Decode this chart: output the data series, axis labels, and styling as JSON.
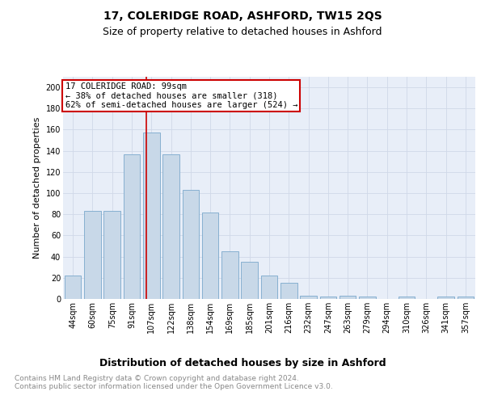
{
  "title1": "17, COLERIDGE ROAD, ASHFORD, TW15 2QS",
  "title2": "Size of property relative to detached houses in Ashford",
  "xlabel": "Distribution of detached houses by size in Ashford",
  "ylabel": "Number of detached properties",
  "categories": [
    "44sqm",
    "60sqm",
    "75sqm",
    "91sqm",
    "107sqm",
    "122sqm",
    "138sqm",
    "154sqm",
    "169sqm",
    "185sqm",
    "201sqm",
    "216sqm",
    "232sqm",
    "247sqm",
    "263sqm",
    "279sqm",
    "294sqm",
    "310sqm",
    "326sqm",
    "341sqm",
    "357sqm"
  ],
  "values": [
    22,
    83,
    83,
    137,
    157,
    137,
    103,
    82,
    45,
    35,
    22,
    15,
    3,
    2,
    3,
    2,
    0,
    2,
    0,
    2,
    2
  ],
  "bar_color": "#c8d8e8",
  "bar_edge_color": "#7aa8cc",
  "grid_color": "#d0d8e8",
  "background_color": "#e8eef8",
  "red_line_color": "#cc0000",
  "annotation_box_text": "17 COLERIDGE ROAD: 99sqm\n← 38% of detached houses are smaller (318)\n62% of semi-detached houses are larger (524) →",
  "annotation_box_color": "#cc0000",
  "footer_text": "Contains HM Land Registry data © Crown copyright and database right 2024.\nContains public sector information licensed under the Open Government Licence v3.0.",
  "ylim": [
    0,
    210
  ],
  "yticks": [
    0,
    20,
    40,
    60,
    80,
    100,
    120,
    140,
    160,
    180,
    200
  ],
  "title1_fontsize": 10,
  "title2_fontsize": 9,
  "xlabel_fontsize": 9,
  "ylabel_fontsize": 8,
  "tick_fontsize": 7,
  "footer_fontsize": 6.5,
  "ann_fontsize": 7.5
}
